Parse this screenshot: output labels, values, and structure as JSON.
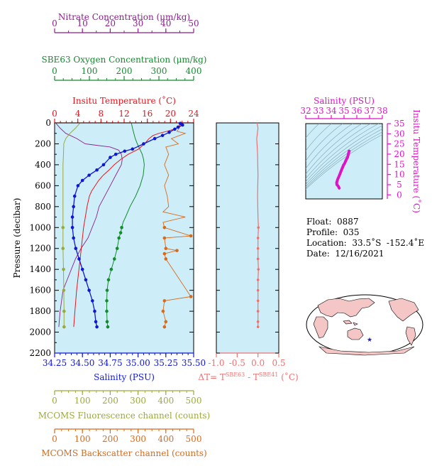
{
  "header": {
    "nitrate_title": "Nitrate Concentration (μm/kg)",
    "oxygen_title": "SBE63 Oxygen Concentration (μm/kg)",
    "temp_title": "Insitu Temperature (˚C)"
  },
  "footer": {
    "salinity_title": "Salinity (PSU)",
    "delta_title": "ΔT= T",
    "delta_sup1": "SBE63",
    "delta_mid": " - T",
    "delta_sup2": "SBE41",
    "delta_unit": " (˚C)",
    "fluor_title": "MCOMS Fluorescence channel (counts)",
    "backscatter_title": "MCOMS Backscatter channel (counts)"
  },
  "info": {
    "float": "Float:  0887",
    "profile": "Profile:  035",
    "location": "Location:  33.5˚S  -152.4˚E",
    "date": "Date:  12/16/2021"
  },
  "colors": {
    "panel_bg": "#cdeef8",
    "nitrate": "#8b1f8b",
    "oxygen": "#158a2e",
    "temperature": "#e8141c",
    "salinity": "#1017d0",
    "fluorescence": "#9aaa3a",
    "backscatter": "#d86a1c",
    "delta": "#f07070",
    "ts": "#e012c8",
    "map_land": "#f4c6c6",
    "map_marker": "#1d1dcc"
  },
  "chart_data": [
    {
      "type": "line",
      "title": "",
      "ylabel": "Pressure (decibar)",
      "ylim": [
        2200,
        0
      ],
      "yticks": [
        0,
        200,
        400,
        600,
        800,
        1000,
        1200,
        1400,
        1600,
        1800,
        2000,
        2200
      ],
      "axes": {
        "nitrate": {
          "label": "Nitrate Concentration (μm/kg)",
          "range": [
            0,
            50
          ],
          "ticks": [
            0,
            10,
            20,
            30,
            40,
            50
          ]
        },
        "oxygen": {
          "label": "SBE63 Oxygen Concentration (μm/kg)",
          "range": [
            0,
            400
          ],
          "ticks": [
            0,
            100,
            200,
            300,
            400
          ]
        },
        "temperature": {
          "label": "Insitu Temperature (˚C)",
          "range": [
            0,
            24
          ],
          "ticks": [
            0,
            4,
            8,
            12,
            16,
            20,
            24
          ]
        },
        "salinity": {
          "label": "Salinity (PSU)",
          "range": [
            34.25,
            35.5
          ],
          "ticks": [
            "34.25",
            "34.50",
            "34.75",
            "35.00",
            "35.25",
            "35.50"
          ]
        },
        "fluorescence": {
          "label": "MCOMS Fluorescence channel (counts)",
          "range": [
            0,
            500
          ],
          "ticks": [
            0,
            100,
            200,
            300,
            400,
            500
          ]
        },
        "backscatter": {
          "label": "MCOMS Backscatter channel (counts)",
          "range": [
            0,
            500
          ],
          "ticks": [
            0,
            100,
            200,
            300,
            400,
            500
          ]
        }
      },
      "series": [
        {
          "key": "temperature",
          "points": [
            [
              21.5,
              5
            ],
            [
              21.6,
              20
            ],
            [
              21.3,
              40
            ],
            [
              20.6,
              60
            ],
            [
              19.4,
              80
            ],
            [
              18.0,
              100
            ],
            [
              17.0,
              120
            ],
            [
              16.3,
              150
            ],
            [
              15.5,
              200
            ],
            [
              14.5,
              250
            ],
            [
              12.7,
              300
            ],
            [
              11.4,
              350
            ],
            [
              10.3,
              400
            ],
            [
              9.4,
              450
            ],
            [
              8.4,
              500
            ],
            [
              7.6,
              550
            ],
            [
              7.0,
              600
            ],
            [
              6.4,
              650
            ],
            [
              6.0,
              700
            ],
            [
              5.6,
              800
            ],
            [
              5.3,
              900
            ],
            [
              5.0,
              1000
            ],
            [
              4.6,
              1200
            ],
            [
              4.2,
              1400
            ],
            [
              3.8,
              1600
            ],
            [
              3.5,
              1800
            ],
            [
              3.3,
              1950
            ]
          ]
        },
        {
          "key": "salinity",
          "points": [
            [
              35.38,
              5
            ],
            [
              35.4,
              20
            ],
            [
              35.36,
              40
            ],
            [
              35.33,
              60
            ],
            [
              35.28,
              90
            ],
            [
              35.22,
              120
            ],
            [
              35.15,
              150
            ],
            [
              35.05,
              200
            ],
            [
              34.95,
              250
            ],
            [
              34.88,
              270
            ],
            [
              34.8,
              300
            ],
            [
              34.75,
              330
            ],
            [
              34.69,
              400
            ],
            [
              34.63,
              450
            ],
            [
              34.56,
              500
            ],
            [
              34.5,
              550
            ],
            [
              34.46,
              600
            ],
            [
              34.43,
              700
            ],
            [
              34.42,
              800
            ],
            [
              34.41,
              900
            ],
            [
              34.41,
              1000
            ],
            [
              34.42,
              1100
            ],
            [
              34.44,
              1200
            ],
            [
              34.47,
              1300
            ],
            [
              34.5,
              1400
            ],
            [
              34.53,
              1500
            ],
            [
              34.56,
              1600
            ],
            [
              34.59,
              1700
            ],
            [
              34.61,
              1800
            ],
            [
              34.62,
              1900
            ],
            [
              34.63,
              1950
            ]
          ],
          "markers": true
        },
        {
          "key": "oxygen",
          "points": [
            [
              221,
              5
            ],
            [
              224,
              50
            ],
            [
              228,
              100
            ],
            [
              232,
              150
            ],
            [
              238,
              200
            ],
            [
              245,
              250
            ],
            [
              252,
              300
            ],
            [
              256,
              350
            ],
            [
              258,
              400
            ],
            [
              255,
              500
            ],
            [
              246,
              600
            ],
            [
              233,
              700
            ],
            [
              217,
              800
            ],
            [
              204,
              900
            ],
            [
              197,
              950
            ],
            [
              193,
              1000
            ],
            [
              190,
              1050
            ],
            [
              185,
              1100
            ],
            [
              180,
              1200
            ],
            [
              172,
              1300
            ],
            [
              163,
              1400
            ],
            [
              155,
              1500
            ],
            [
              151,
              1600
            ],
            [
              150,
              1700
            ],
            [
              150,
              1800
            ],
            [
              151,
              1900
            ],
            [
              153,
              1950
            ]
          ],
          "markers": true,
          "marker_from": 1000
        },
        {
          "key": "nitrate",
          "points": [
            [
              0.5,
              5
            ],
            [
              2.0,
              50
            ],
            [
              4.0,
              100
            ],
            [
              8.0,
              150
            ],
            [
              11.0,
              200
            ],
            [
              20.0,
              230
            ],
            [
              23.0,
              260
            ],
            [
              24.0,
              300
            ],
            [
              24.3,
              350
            ],
            [
              24.0,
              400
            ],
            [
              22.0,
              500
            ],
            [
              20.0,
              600
            ],
            [
              18.0,
              700
            ],
            [
              16.0,
              800
            ],
            [
              15.0,
              900
            ],
            [
              13.5,
              1000
            ],
            [
              12.0,
              1100
            ],
            [
              9.5,
              1200
            ],
            [
              7.5,
              1300
            ],
            [
              6.0,
              1400
            ],
            [
              3.0,
              1600
            ],
            [
              2.0,
              1800
            ],
            [
              1.5,
              1950
            ]
          ],
          "markers": false
        },
        {
          "key": "fluorescence",
          "points": [
            [
              90,
              5
            ],
            [
              75,
              50
            ],
            [
              55,
              100
            ],
            [
              40,
              150
            ],
            [
              33,
              200
            ],
            [
              32,
              300
            ],
            [
              30,
              400
            ],
            [
              30,
              600
            ],
            [
              30,
              800
            ],
            [
              30,
              1000
            ],
            [
              30,
              1200
            ],
            [
              32,
              1400
            ],
            [
              33,
              1600
            ],
            [
              34,
              1800
            ],
            [
              34,
              1950
            ]
          ],
          "markers": true,
          "marker_from": 1000
        },
        {
          "key": "backscatter",
          "points": [
            [
              460,
              5
            ],
            [
              440,
              80
            ],
            [
              470,
              100
            ],
            [
              420,
              150
            ],
            [
              445,
              200
            ],
            [
              400,
              230
            ],
            [
              410,
              300
            ],
            [
              395,
              400
            ],
            [
              410,
              500
            ],
            [
              395,
              600
            ],
            [
              405,
              700
            ],
            [
              410,
              800
            ],
            [
              390,
              850
            ],
            [
              470,
              900
            ],
            [
              390,
              950
            ],
            [
              395,
              1000
            ],
            [
              490,
              1080
            ],
            [
              395,
              1100
            ],
            [
              400,
              1200
            ],
            [
              440,
              1220
            ],
            [
              395,
              1250
            ],
            [
              400,
              1300
            ],
            [
              490,
              1660
            ],
            [
              395,
              1700
            ],
            [
              390,
              1800
            ],
            [
              400,
              1900
            ],
            [
              395,
              1950
            ]
          ],
          "markers": true,
          "marker_from": 1000
        }
      ]
    },
    {
      "type": "line",
      "title": "",
      "xlabel": "ΔT= TSBE63 - TSBE41 (˚C)",
      "xlim": [
        -1.0,
        0.5
      ],
      "xticks": [
        "-1.0",
        "-0.5",
        "0.0",
        "0.5"
      ],
      "ylim": [
        2200,
        0
      ],
      "series": [
        {
          "name": "ΔT",
          "points": [
            [
              -0.02,
              0
            ],
            [
              0.0,
              50
            ],
            [
              -0.03,
              150
            ],
            [
              -0.01,
              300
            ],
            [
              0.0,
              500
            ],
            [
              -0.01,
              700
            ],
            [
              0.0,
              900
            ],
            [
              0.01,
              1000
            ],
            [
              0.0,
              1100
            ],
            [
              0.0,
              1200
            ],
            [
              0.0,
              1300
            ],
            [
              0.01,
              1400
            ],
            [
              0.0,
              1500
            ],
            [
              0.0,
              1600
            ],
            [
              0.0,
              1700
            ],
            [
              0.0,
              1800
            ],
            [
              0.0,
              1900
            ],
            [
              0.0,
              1950
            ]
          ]
        }
      ]
    },
    {
      "type": "scatter",
      "title": "",
      "xlabel": "Salinity (PSU)",
      "ylabel": "Insitu Temperature (˚C)",
      "xlim": [
        32,
        38
      ],
      "ylim": [
        -2,
        35
      ],
      "xticks": [
        32,
        33,
        34,
        35,
        36,
        37,
        38
      ],
      "yticks": [
        0,
        5,
        10,
        15,
        20,
        25,
        30,
        35
      ],
      "series": [
        {
          "name": "T-S",
          "points": [
            [
              34.62,
              3.3
            ],
            [
              34.55,
              4.2
            ],
            [
              34.44,
              5.0
            ],
            [
              34.42,
              6.0
            ],
            [
              34.5,
              7.6
            ],
            [
              34.63,
              9.4
            ],
            [
              34.75,
              11.4
            ],
            [
              34.95,
              14.5
            ],
            [
              35.05,
              15.5
            ],
            [
              35.15,
              17.0
            ],
            [
              35.28,
              18.5
            ],
            [
              35.36,
              20.6
            ],
            [
              35.4,
              21.5
            ]
          ]
        }
      ]
    }
  ]
}
